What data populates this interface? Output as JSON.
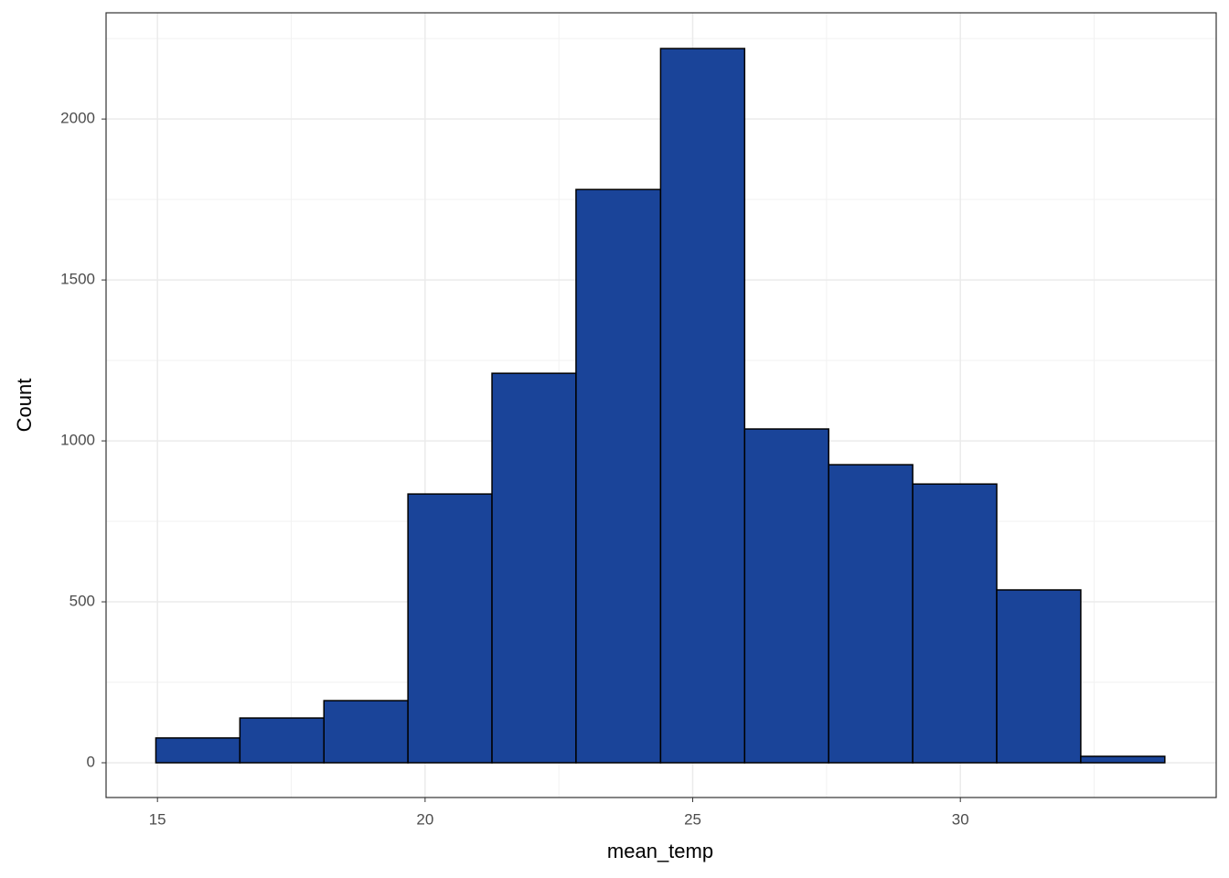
{
  "chart_data": {
    "type": "histogram",
    "x_label": "mean_temp",
    "y_label": "Count",
    "bins": [
      14.97,
      16.54,
      18.11,
      19.68,
      21.25,
      22.82,
      24.4,
      25.97,
      27.54,
      29.11,
      30.68,
      32.25,
      33.82
    ],
    "values": [
      77,
      139,
      193,
      835,
      1210,
      1781,
      2219,
      1037,
      926,
      866,
      537,
      20
    ],
    "color": "#1a4499",
    "xlim": [
      14.04,
      34.78
    ],
    "xticks": [
      15,
      20,
      25,
      30
    ],
    "xminor": [
      17.5,
      22.5,
      27.5,
      32.5
    ],
    "ylim": [
      -108,
      2330
    ],
    "yticks": [
      0,
      500,
      1000,
      1500,
      2000
    ],
    "yminor": [
      250,
      750,
      1250,
      1750,
      2250
    ],
    "grid": true
  }
}
